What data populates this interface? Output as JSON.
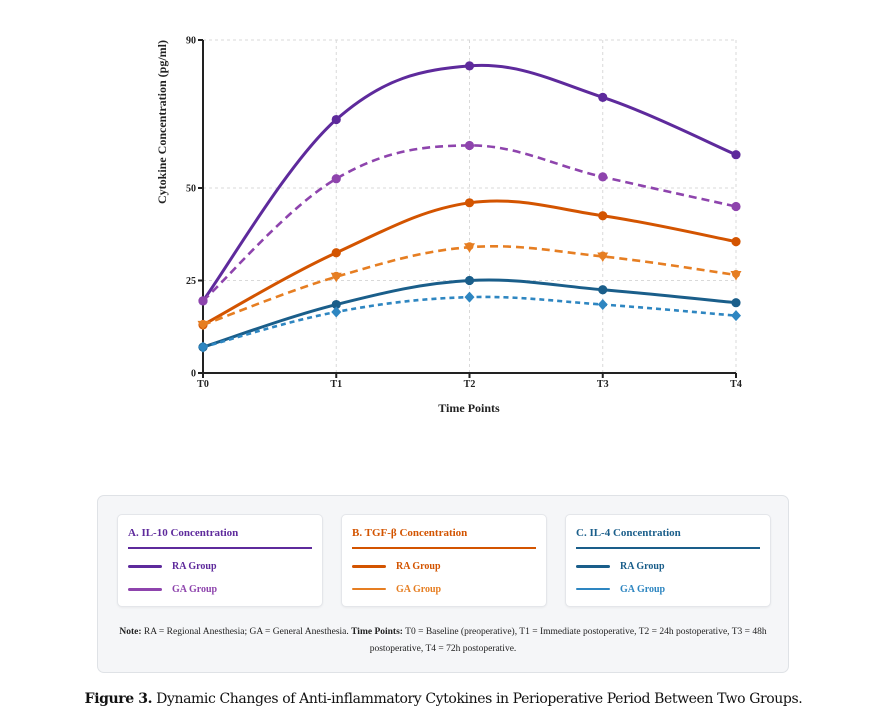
{
  "chart_data": {
    "type": "line",
    "title": "",
    "xlabel": "Time Points",
    "ylabel": "Cytokine Concentration (pg/ml)",
    "categories": [
      "T0",
      "T1",
      "T2",
      "T3",
      "T4"
    ],
    "yticks": [
      0,
      25,
      50,
      90
    ],
    "ylim": [
      0,
      90
    ],
    "grid": true,
    "series": [
      {
        "name": "IL-10 RA Group",
        "panel": "A",
        "group": "RA",
        "color": "#5e2a9c",
        "dash": "solid",
        "marker": "circle",
        "values": [
          19.5,
          68.5,
          83,
          74.5,
          59
        ]
      },
      {
        "name": "IL-10 GA Group",
        "panel": "A",
        "group": "GA",
        "color": "#8e44ad",
        "dash": "dashed",
        "marker": "circle",
        "values": [
          19.5,
          52.5,
          61.5,
          53,
          45
        ]
      },
      {
        "name": "TGF-β RA Group",
        "panel": "B",
        "group": "RA",
        "color": "#d35400",
        "dash": "solid",
        "marker": "circle",
        "values": [
          13,
          32.5,
          46,
          42.5,
          35.5
        ]
      },
      {
        "name": "TGF-β GA Group",
        "panel": "B",
        "group": "GA",
        "color": "#e67e22",
        "dash": "dashed",
        "marker": "triangle-down",
        "values": [
          13,
          26,
          34,
          31.5,
          26.5
        ]
      },
      {
        "name": "IL-4 RA Group",
        "panel": "C",
        "group": "RA",
        "color": "#1a5e8a",
        "dash": "solid",
        "marker": "circle",
        "values": [
          7,
          18.5,
          25,
          22.5,
          19
        ]
      },
      {
        "name": "IL-4 GA Group",
        "panel": "C",
        "group": "GA",
        "color": "#2e86c1",
        "dash": "dotted",
        "marker": "diamond",
        "values": [
          7,
          16.5,
          20.5,
          18.5,
          15.5
        ]
      }
    ]
  },
  "legend": {
    "cards": [
      {
        "title": "A. IL-10 Concentration",
        "color": "#5e2a9c",
        "items": [
          {
            "label": "RA Group",
            "color": "#5e2a9c"
          },
          {
            "label": "GA Group",
            "color": "#8e44ad"
          }
        ]
      },
      {
        "title": "B. TGF-β Concentration",
        "color": "#d35400",
        "items": [
          {
            "label": "RA Group",
            "color": "#d35400"
          },
          {
            "label": "GA Group",
            "color": "#e67e22"
          }
        ]
      },
      {
        "title": "C. IL-4 Concentration",
        "color": "#1a5e8a",
        "items": [
          {
            "label": "RA Group",
            "color": "#1a5e8a"
          },
          {
            "label": "GA Group",
            "color": "#2e86c1"
          }
        ]
      }
    ],
    "note": {
      "note_label": "Note:",
      "note_text": " RA = Regional Anesthesia; GA = General Anesthesia. ",
      "timepoints_label": "Time Points:",
      "timepoints_text": " T0 = Baseline (preoperative), T1 = Immediate postoperative, T2 = 24h postoperative, T3 = 48h postoperative, T4 = 72h postoperative."
    }
  },
  "caption": {
    "label": "Figure 3.",
    "text": " Dynamic Changes of Anti-inflammatory Cytokines in Perioperative Period Between Two Groups."
  }
}
